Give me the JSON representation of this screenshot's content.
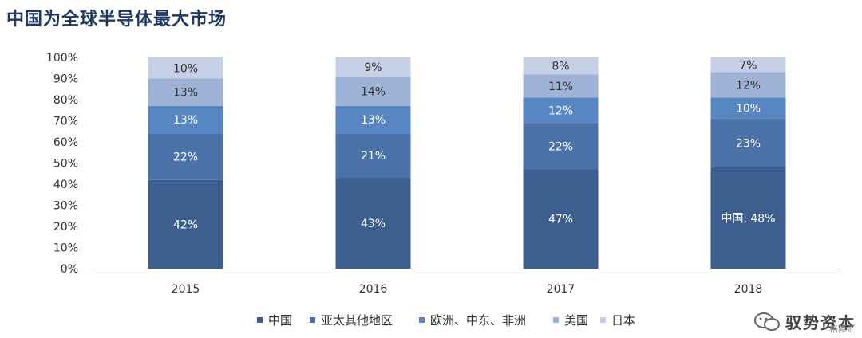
{
  "chart_data": {
    "type": "bar",
    "stacked": true,
    "title": "中国为全球半导体最大市场",
    "categories": [
      "2015",
      "2016",
      "2017",
      "2018"
    ],
    "ylim": [
      0,
      100
    ],
    "yticks": [
      "0%",
      "10%",
      "20%",
      "30%",
      "40%",
      "50%",
      "60%",
      "70%",
      "80%",
      "90%",
      "100%"
    ],
    "legend_position": "bottom",
    "series": [
      {
        "name": "中国",
        "values": [
          42,
          43,
          47,
          48
        ],
        "labels": [
          "42%",
          "43%",
          "47%",
          "中国, 48%"
        ],
        "color": "#3d5f8f"
      },
      {
        "name": "亚太其他地区",
        "values": [
          22,
          21,
          22,
          23
        ],
        "labels": [
          "22%",
          "21%",
          "22%",
          "23%"
        ],
        "color": "#4a72a8"
      },
      {
        "name": "欧洲、中东、非洲",
        "values": [
          13,
          13,
          12,
          10
        ],
        "labels": [
          "13%",
          "13%",
          "12%",
          "10%"
        ],
        "color": "#5886c3"
      },
      {
        "name": "美国",
        "values": [
          13,
          14,
          11,
          12
        ],
        "labels": [
          "13%",
          "14%",
          "11%",
          "12%"
        ],
        "color": "#9eb2d6"
      },
      {
        "name": "日本",
        "values": [
          10,
          9,
          8,
          7
        ],
        "labels": [
          "10%",
          "9%",
          "8%",
          "7%"
        ],
        "color": "#c5d0e6"
      }
    ]
  },
  "watermark": {
    "text": "驭势资本",
    "sub": "格隆汇"
  }
}
